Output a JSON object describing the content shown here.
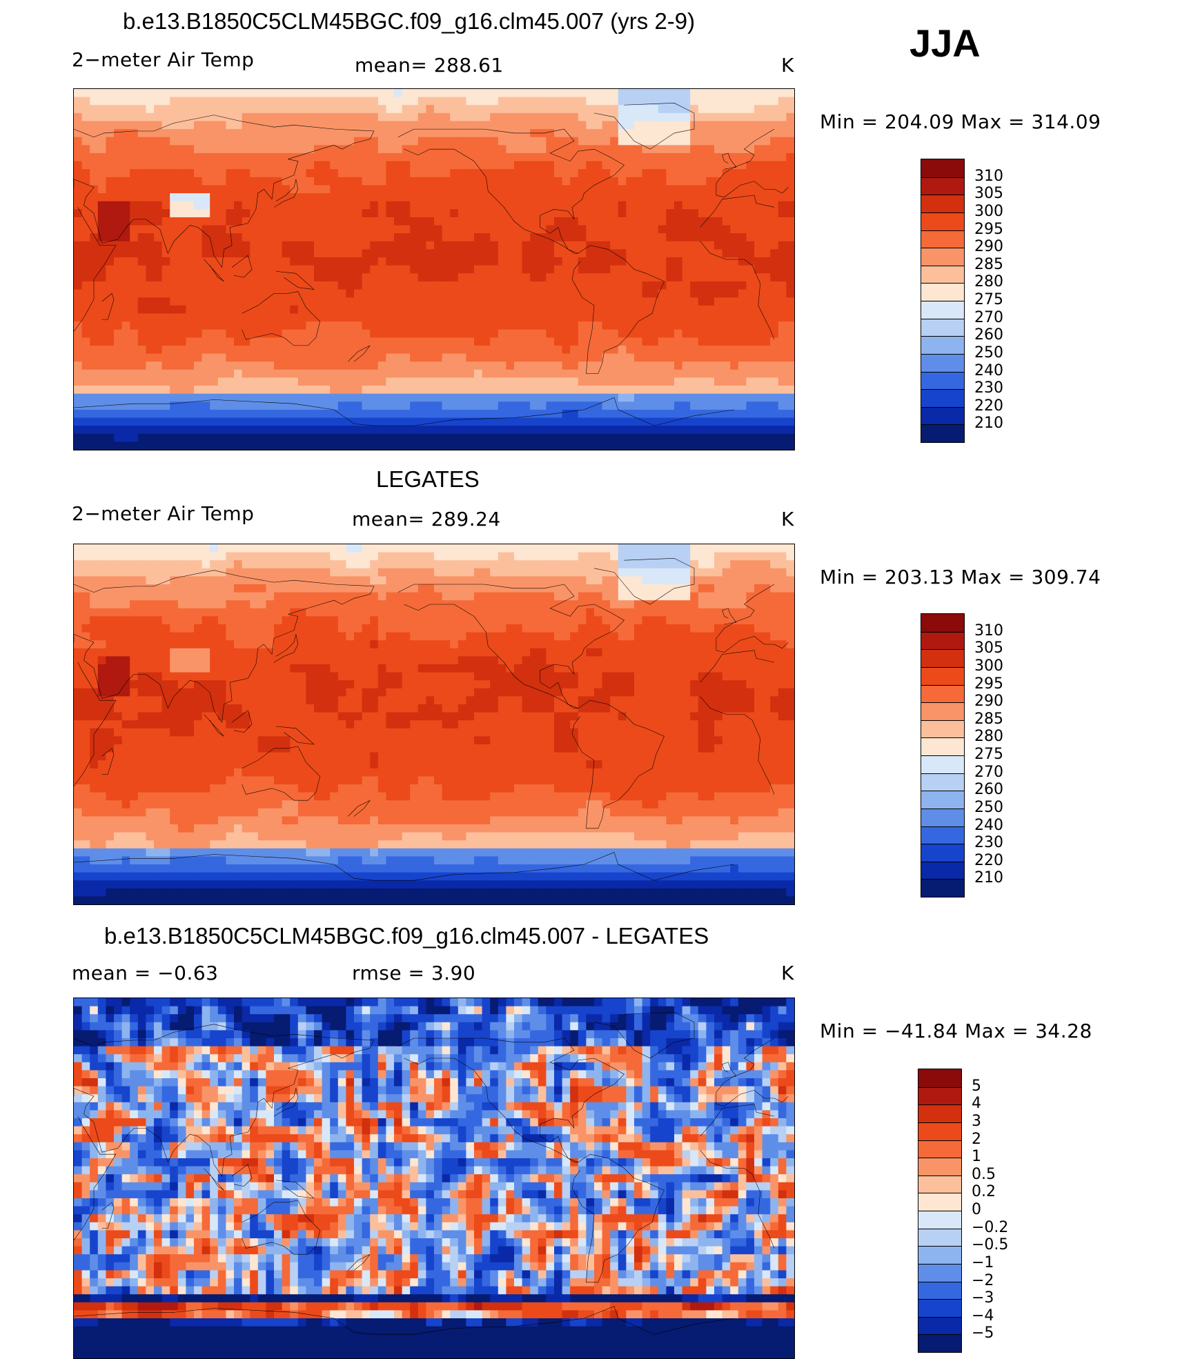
{
  "season": "JJA",
  "panels": [
    {
      "id": "model",
      "title": "b.e13.B1850C5CLM45BGC.f09_g16.clm45.007 (yrs 2-9)",
      "left_label": "2−meter Air Temp",
      "center_label": "mean=  288.61",
      "units": "K",
      "minmax": "Min  =  204.09  Max  =  314.09",
      "colorbar_ticks": [
        "310",
        "305",
        "300",
        "295",
        "290",
        "285",
        "280",
        "275",
        "270",
        "260",
        "250",
        "240",
        "230",
        "220",
        "210"
      ],
      "colorbar_colors": [
        "#8b0a0a",
        "#b0190f",
        "#d2300f",
        "#ec4a1a",
        "#f56a38",
        "#f99468",
        "#fcbf9c",
        "#fde6d2",
        "#d8e8f8",
        "#b7d0f4",
        "#8eb4ef",
        "#5f8ee8",
        "#3568e0",
        "#1744cc",
        "#0a29a8",
        "#061b72"
      ],
      "field": "temp"
    },
    {
      "id": "obs",
      "title": "LEGATES",
      "left_label": "2−meter Air Temp",
      "center_label": "mean=  289.24",
      "units": "K",
      "minmax": "Min  =  203.13  Max  =  309.74",
      "colorbar_ticks": [
        "310",
        "305",
        "300",
        "295",
        "290",
        "285",
        "280",
        "275",
        "270",
        "260",
        "250",
        "240",
        "230",
        "220",
        "210"
      ],
      "colorbar_colors": [
        "#8b0a0a",
        "#b0190f",
        "#d2300f",
        "#ec4a1a",
        "#f56a38",
        "#f99468",
        "#fcbf9c",
        "#fde6d2",
        "#d8e8f8",
        "#b7d0f4",
        "#8eb4ef",
        "#5f8ee8",
        "#3568e0",
        "#1744cc",
        "#0a29a8",
        "#061b72"
      ],
      "field": "temp"
    },
    {
      "id": "diff",
      "title": "b.e13.B1850C5CLM45BGC.f09_g16.clm45.007 - LEGATES",
      "left_label": "mean  =    −0.63",
      "center_label": "rmse  =     3.90",
      "units": "K",
      "minmax": "Min  =  −41.84  Max  =    34.28",
      "colorbar_ticks": [
        "5",
        "4",
        "3",
        "2",
        "1",
        "0.5",
        "0.2",
        "0",
        "−0.2",
        "−0.5",
        "−1",
        "−2",
        "−3",
        "−4",
        "−5"
      ],
      "colorbar_colors": [
        "#8b0a0a",
        "#b0190f",
        "#d2300f",
        "#ec4a1a",
        "#f56a38",
        "#f99468",
        "#fcbf9c",
        "#fde6d2",
        "#d8e8f8",
        "#b7d0f4",
        "#8eb4ef",
        "#5f8ee8",
        "#3568e0",
        "#1744cc",
        "#0a29a8",
        "#061b72"
      ],
      "field": "diff"
    }
  ]
}
